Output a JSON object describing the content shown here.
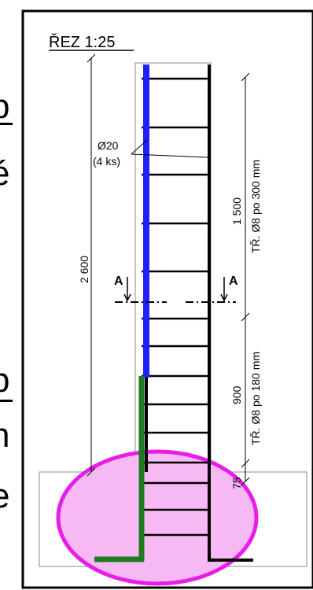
{
  "section_title": "ŘEZ 1:25",
  "rebar_label": "Ø20",
  "rebar_count": "(4 ks)",
  "dim_total": "2 600",
  "dim_upper": "1 500",
  "dim_lower": "900",
  "dim_base": "75",
  "stirrups_upper": "TŘ. Ø8 po 300 mm",
  "stirrups_lower": "TŘ. Ø8 po 180 mm",
  "section_mark_left": "A",
  "section_mark_right": "A",
  "cropped_text": {
    "right_top_1": "p",
    "right_top_2": "é",
    "right_bottom_1": "p",
    "right_bottom_2": "n",
    "right_bottom_3": "e",
    "right_bottom_4": ")"
  },
  "colors": {
    "main_rebar": "#1f1fff",
    "starter_bars": "#1e7a1e",
    "highlight_fill": "#f7b9f4",
    "highlight_stroke": "#e81ee8",
    "outline": "#000000"
  }
}
